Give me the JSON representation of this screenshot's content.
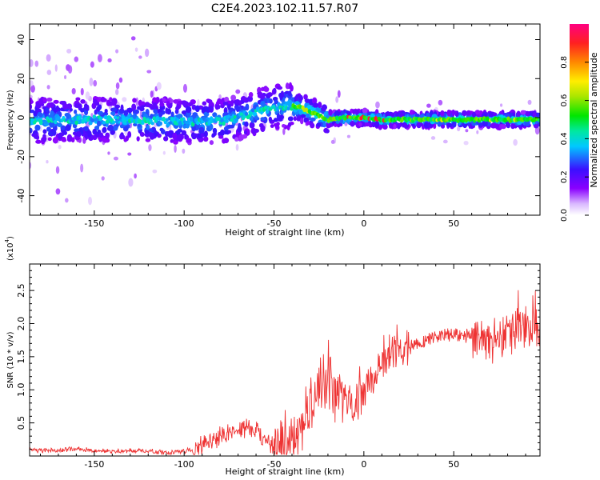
{
  "title": "C2E4.2023.102.11.57.R07",
  "chart_data": [
    {
      "type": "heatmap",
      "title": "C2E4.2023.102.11.57.R07",
      "xlabel": "Height of straight line (km)",
      "ylabel": "Frequency (Hz)",
      "xlim": [
        -186,
        98
      ],
      "ylim": [
        -50,
        48
      ],
      "xticks": [
        -150,
        -100,
        -50,
        0,
        50
      ],
      "yticks": [
        -40,
        -20,
        0,
        20,
        40
      ],
      "colorbar": {
        "label": "Normalized spectral amplitude",
        "range": [
          0.0,
          1.0
        ],
        "ticks": [
          0.0,
          0.2,
          0.4,
          0.6,
          0.8
        ]
      },
      "ridge": {
        "x": [
          -186,
          -150,
          -100,
          -80,
          -70,
          -60,
          -55,
          -50,
          -45,
          -40,
          -35,
          -30,
          -25,
          -20,
          -10,
          0,
          10,
          30,
          60,
          90,
          98
        ],
        "y": [
          -2,
          -1,
          -2,
          -2,
          0,
          3,
          4,
          5,
          6,
          6,
          5,
          3,
          1,
          -1,
          0,
          0,
          -1,
          -1,
          -1,
          -1,
          -1
        ]
      }
    },
    {
      "type": "line",
      "xlabel": "Height of straight line (km)",
      "ylabel": "SNR (10 * v/v)",
      "y_multiplier": "(x10^4)",
      "y_multiplier_base": "(x10",
      "y_multiplier_exp": "4",
      "xlim": [
        -186,
        98
      ],
      "ylim": [
        0,
        2.9
      ],
      "xticks": [
        -150,
        -100,
        -50,
        0,
        50
      ],
      "yticks": [
        0.5,
        1.0,
        1.5,
        2.0,
        2.5
      ],
      "ytick_labels": [
        "0.5",
        "1.0",
        "1.5",
        "2.0",
        "2.5"
      ],
      "series": [
        {
          "name": "SNR",
          "color": "#ee3333",
          "x": [
            -186,
            -180,
            -170,
            -160,
            -150,
            -140,
            -130,
            -120,
            -110,
            -100,
            -95,
            -90,
            -85,
            -80,
            -75,
            -70,
            -65,
            -60,
            -55,
            -50,
            -45,
            -40,
            -35,
            -30,
            -25,
            -20,
            -15,
            -10,
            -5,
            0,
            5,
            10,
            15,
            20,
            25,
            30,
            35,
            40,
            45,
            50,
            55,
            60,
            65,
            70,
            75,
            80,
            85,
            90,
            95,
            98
          ],
          "y": [
            0.1,
            0.08,
            0.09,
            0.1,
            0.08,
            0.07,
            0.08,
            0.07,
            0.06,
            0.07,
            0.1,
            0.15,
            0.22,
            0.3,
            0.36,
            0.4,
            0.42,
            0.38,
            0.25,
            0.15,
            0.18,
            0.25,
            0.4,
            0.75,
            1.0,
            1.1,
            0.95,
            0.9,
            0.8,
            0.95,
            1.2,
            1.45,
            1.55,
            1.6,
            1.65,
            1.7,
            1.75,
            1.8,
            1.82,
            1.85,
            1.82,
            1.8,
            1.78,
            1.75,
            1.8,
            1.85,
            1.9,
            1.95,
            1.9,
            1.85
          ]
        }
      ]
    }
  ]
}
